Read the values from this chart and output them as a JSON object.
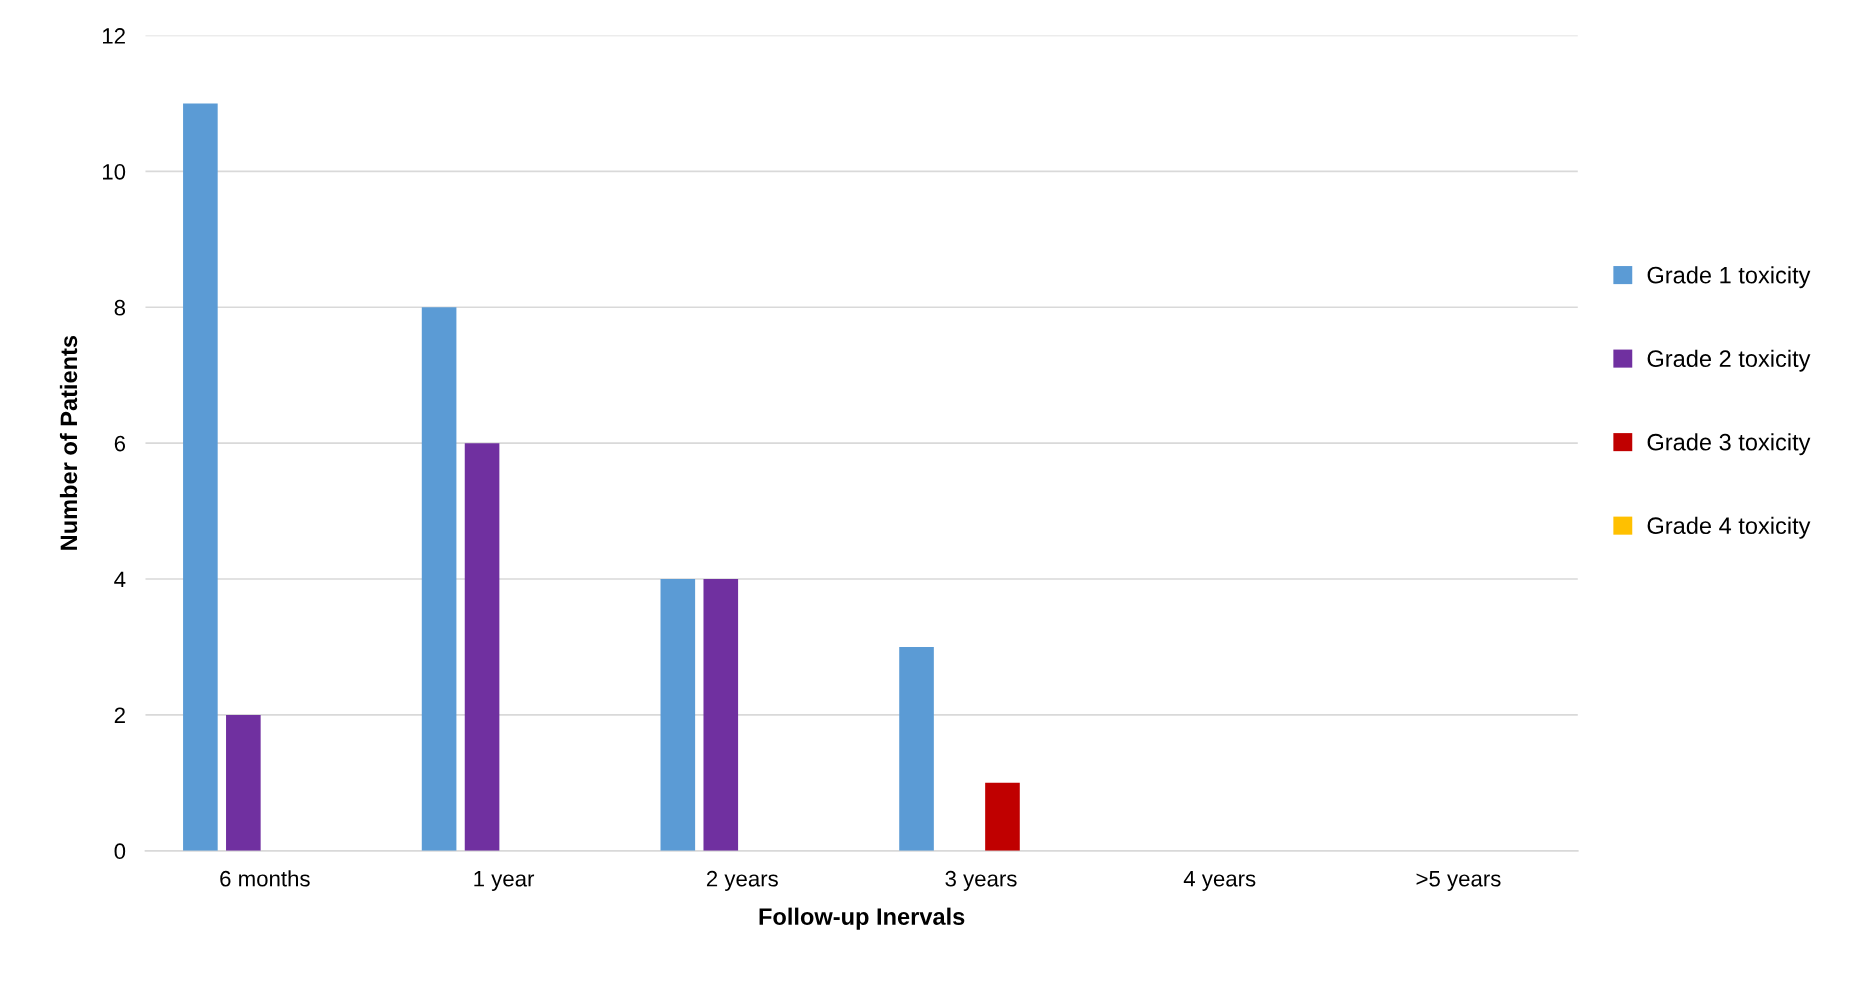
{
  "chart_data": {
    "type": "bar",
    "xlabel": "Follow-up Inervals",
    "ylabel": "Number of Patients",
    "categories": [
      "6 months",
      "1 year",
      "2 years",
      "3 years",
      "4 years",
      ">5 years"
    ],
    "series": [
      {
        "name": "Grade 1 toxicity",
        "color": "#5b9bd5",
        "values": [
          11,
          8,
          4,
          3,
          0,
          0
        ]
      },
      {
        "name": "Grade 2 toxicity",
        "color": "#7030a0",
        "values": [
          2,
          6,
          4,
          0,
          0,
          0
        ]
      },
      {
        "name": "Grade 3 toxicity",
        "color": "#c00000",
        "values": [
          0,
          0,
          0,
          1,
          0,
          0
        ]
      },
      {
        "name": "Grade 4 toxicity",
        "color": "#ffc000",
        "values": [
          0,
          0,
          0,
          0,
          0,
          0
        ]
      }
    ],
    "ylim": [
      0,
      12
    ],
    "yticks": [
      0,
      2,
      4,
      6,
      8,
      10,
      12
    ],
    "grid": "y",
    "legend": "right"
  }
}
